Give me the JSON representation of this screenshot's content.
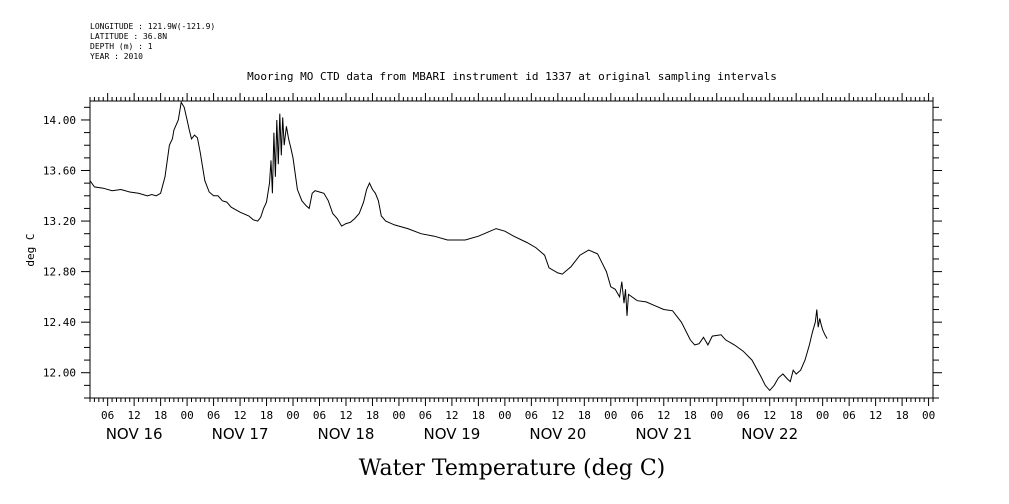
{
  "header": {
    "lines": [
      "LONGITUDE : 121.9W(-121.9)",
      "LATITUDE : 36.8N",
      "DEPTH (m) : 1",
      "YEAR : 2010"
    ]
  },
  "chart_data": {
    "type": "line",
    "title": "Mooring MO CTD data from MBARI instrument id 1337 at original sampling intervals",
    "xlabel": "Water Temperature (deg C)",
    "ylabel": "deg C",
    "xlim": [
      "2010-11-15T02:00",
      "2010-11-23T01:00"
    ],
    "ylim": [
      11.8,
      14.15
    ],
    "yticks": [
      12.0,
      12.4,
      12.8,
      13.2,
      13.6,
      14.0
    ],
    "ytick_labels": [
      "12.00",
      "12.40",
      "12.80",
      "13.20",
      "13.60",
      "14.00"
    ],
    "hour_tick_labels": [
      {
        "t": "2010-11-15T06:00",
        "label": "06"
      },
      {
        "t": "2010-11-15T12:00",
        "label": "12"
      },
      {
        "t": "2010-11-15T18:00",
        "label": "18"
      },
      {
        "t": "2010-11-16T00:00",
        "label": "00"
      },
      {
        "t": "2010-11-16T06:00",
        "label": "06"
      },
      {
        "t": "2010-11-16T12:00",
        "label": "12"
      },
      {
        "t": "2010-11-16T18:00",
        "label": "18"
      },
      {
        "t": "2010-11-17T00:00",
        "label": "00"
      },
      {
        "t": "2010-11-17T06:00",
        "label": "06"
      },
      {
        "t": "2010-11-17T12:00",
        "label": "12"
      },
      {
        "t": "2010-11-17T18:00",
        "label": "18"
      },
      {
        "t": "2010-11-18T00:00",
        "label": "00"
      },
      {
        "t": "2010-11-18T06:00",
        "label": "06"
      },
      {
        "t": "2010-11-18T12:00",
        "label": "12"
      },
      {
        "t": "2010-11-18T18:00",
        "label": "18"
      },
      {
        "t": "2010-11-19T00:00",
        "label": "00"
      },
      {
        "t": "2010-11-19T06:00",
        "label": "06"
      },
      {
        "t": "2010-11-19T12:00",
        "label": "12"
      },
      {
        "t": "2010-11-19T18:00",
        "label": "18"
      },
      {
        "t": "2010-11-20T00:00",
        "label": "00"
      },
      {
        "t": "2010-11-20T06:00",
        "label": "06"
      },
      {
        "t": "2010-11-20T12:00",
        "label": "12"
      },
      {
        "t": "2010-11-20T18:00",
        "label": "18"
      },
      {
        "t": "2010-11-21T00:00",
        "label": "00"
      },
      {
        "t": "2010-11-21T06:00",
        "label": "06"
      },
      {
        "t": "2010-11-21T12:00",
        "label": "12"
      },
      {
        "t": "2010-11-21T18:00",
        "label": "18"
      },
      {
        "t": "2010-11-22T00:00",
        "label": "00"
      },
      {
        "t": "2010-11-22T06:00",
        "label": "06"
      },
      {
        "t": "2010-11-22T12:00",
        "label": "12"
      },
      {
        "t": "2010-11-22T18:00",
        "label": "18"
      },
      {
        "t": "2010-11-23T00:00",
        "label": "00"
      }
    ],
    "day_labels": [
      {
        "t": "2010-11-15T12:00",
        "label": "NOV 16"
      },
      {
        "t": "2010-11-16T12:00",
        "label": "NOV 17"
      },
      {
        "t": "2010-11-17T12:00",
        "label": "NOV 18"
      },
      {
        "t": "2010-11-18T12:00",
        "label": "NOV 19"
      },
      {
        "t": "2010-11-19T12:00",
        "label": "NOV 20"
      },
      {
        "t": "2010-11-20T12:00",
        "label": "NOV 21"
      },
      {
        "t": "2010-11-21T12:00",
        "label": "NOV 22"
      }
    ],
    "grid": false,
    "series": [
      {
        "color": "#000000",
        "points": [
          [
            "2010-11-15T02:00",
            13.52
          ],
          [
            "2010-11-15T03:00",
            13.47
          ],
          [
            "2010-11-15T05:00",
            13.46
          ],
          [
            "2010-11-15T07:00",
            13.44
          ],
          [
            "2010-11-15T09:00",
            13.45
          ],
          [
            "2010-11-15T11:00",
            13.43
          ],
          [
            "2010-11-15T13:00",
            13.42
          ],
          [
            "2010-11-15T15:00",
            13.4
          ],
          [
            "2010-11-15T16:00",
            13.41
          ],
          [
            "2010-11-15T17:00",
            13.4
          ],
          [
            "2010-11-15T18:00",
            13.42
          ],
          [
            "2010-11-15T19:00",
            13.55
          ],
          [
            "2010-11-15T20:00",
            13.8
          ],
          [
            "2010-11-15T20:40",
            13.85
          ],
          [
            "2010-11-15T21:00",
            13.92
          ],
          [
            "2010-11-15T22:00",
            14.0
          ],
          [
            "2010-11-15T22:40",
            14.14
          ],
          [
            "2010-11-15T23:20",
            14.1
          ],
          [
            "2010-11-16T00:00",
            14.0
          ],
          [
            "2010-11-16T00:30",
            13.92
          ],
          [
            "2010-11-16T01:00",
            13.85
          ],
          [
            "2010-11-16T01:40",
            13.88
          ],
          [
            "2010-11-16T02:20",
            13.86
          ],
          [
            "2010-11-16T03:00",
            13.74
          ],
          [
            "2010-11-16T04:00",
            13.52
          ],
          [
            "2010-11-16T05:00",
            13.43
          ],
          [
            "2010-11-16T06:00",
            13.4
          ],
          [
            "2010-11-16T07:00",
            13.4
          ],
          [
            "2010-11-16T08:00",
            13.36
          ],
          [
            "2010-11-16T09:00",
            13.35
          ],
          [
            "2010-11-16T10:00",
            13.31
          ],
          [
            "2010-11-16T12:00",
            13.27
          ],
          [
            "2010-11-16T14:00",
            13.24
          ],
          [
            "2010-11-16T15:00",
            13.21
          ],
          [
            "2010-11-16T16:00",
            13.2
          ],
          [
            "2010-11-16T16:40",
            13.23
          ],
          [
            "2010-11-16T17:20",
            13.3
          ],
          [
            "2010-11-16T18:00",
            13.35
          ],
          [
            "2010-11-16T18:40",
            13.5
          ],
          [
            "2010-11-16T19:00",
            13.68
          ],
          [
            "2010-11-16T19:20",
            13.42
          ],
          [
            "2010-11-16T19:40",
            13.9
          ],
          [
            "2010-11-16T20:00",
            13.55
          ],
          [
            "2010-11-16T20:20",
            14.0
          ],
          [
            "2010-11-16T20:40",
            13.65
          ],
          [
            "2010-11-16T21:00",
            14.05
          ],
          [
            "2010-11-16T21:20",
            13.72
          ],
          [
            "2010-11-16T21:40",
            14.02
          ],
          [
            "2010-11-16T22:00",
            13.8
          ],
          [
            "2010-11-16T22:30",
            13.95
          ],
          [
            "2010-11-16T23:00",
            13.85
          ],
          [
            "2010-11-16T23:30",
            13.78
          ],
          [
            "2010-11-17T00:00",
            13.7
          ],
          [
            "2010-11-17T01:00",
            13.45
          ],
          [
            "2010-11-17T02:00",
            13.36
          ],
          [
            "2010-11-17T03:00",
            13.32
          ],
          [
            "2010-11-17T03:40",
            13.3
          ],
          [
            "2010-11-17T04:20",
            13.42
          ],
          [
            "2010-11-17T05:00",
            13.44
          ],
          [
            "2010-11-17T06:00",
            13.43
          ],
          [
            "2010-11-17T07:00",
            13.42
          ],
          [
            "2010-11-17T08:00",
            13.36
          ],
          [
            "2010-11-17T09:00",
            13.26
          ],
          [
            "2010-11-17T10:00",
            13.22
          ],
          [
            "2010-11-17T11:00",
            13.16
          ],
          [
            "2010-11-17T12:00",
            13.18
          ],
          [
            "2010-11-17T13:00",
            13.19
          ],
          [
            "2010-11-17T14:00",
            13.22
          ],
          [
            "2010-11-17T15:00",
            13.26
          ],
          [
            "2010-11-17T16:00",
            13.35
          ],
          [
            "2010-11-17T16:40",
            13.45
          ],
          [
            "2010-11-17T17:20",
            13.5
          ],
          [
            "2010-11-17T18:00",
            13.45
          ],
          [
            "2010-11-17T18:40",
            13.42
          ],
          [
            "2010-11-17T19:20",
            13.36
          ],
          [
            "2010-11-17T20:00",
            13.24
          ],
          [
            "2010-11-17T21:00",
            13.2
          ],
          [
            "2010-11-17T23:00",
            13.17
          ],
          [
            "2010-11-18T02:00",
            13.14
          ],
          [
            "2010-11-18T05:00",
            13.1
          ],
          [
            "2010-11-18T08:00",
            13.08
          ],
          [
            "2010-11-18T11:00",
            13.05
          ],
          [
            "2010-11-18T15:00",
            13.05
          ],
          [
            "2010-11-18T18:00",
            13.08
          ],
          [
            "2010-11-18T20:00",
            13.11
          ],
          [
            "2010-11-18T22:00",
            13.14
          ],
          [
            "2010-11-19T00:00",
            13.12
          ],
          [
            "2010-11-19T02:00",
            13.08
          ],
          [
            "2010-11-19T05:00",
            13.03
          ],
          [
            "2010-11-19T07:00",
            12.99
          ],
          [
            "2010-11-19T09:00",
            12.93
          ],
          [
            "2010-11-19T10:00",
            12.83
          ],
          [
            "2010-11-19T12:00",
            12.79
          ],
          [
            "2010-11-19T13:00",
            12.78
          ],
          [
            "2010-11-19T15:00",
            12.84
          ],
          [
            "2010-11-19T17:00",
            12.93
          ],
          [
            "2010-11-19T19:00",
            12.97
          ],
          [
            "2010-11-19T21:00",
            12.94
          ],
          [
            "2010-11-19T22:00",
            12.87
          ],
          [
            "2010-11-19T23:00",
            12.8
          ],
          [
            "2010-11-20T00:00",
            12.68
          ],
          [
            "2010-11-20T01:00",
            12.66
          ],
          [
            "2010-11-20T02:00",
            12.6
          ],
          [
            "2010-11-20T02:30",
            12.72
          ],
          [
            "2010-11-20T03:00",
            12.55
          ],
          [
            "2010-11-20T03:20",
            12.66
          ],
          [
            "2010-11-20T03:40",
            12.45
          ],
          [
            "2010-11-20T04:00",
            12.62
          ],
          [
            "2010-11-20T06:00",
            12.57
          ],
          [
            "2010-11-20T08:00",
            12.56
          ],
          [
            "2010-11-20T10:00",
            12.53
          ],
          [
            "2010-11-20T12:00",
            12.5
          ],
          [
            "2010-11-20T14:00",
            12.49
          ],
          [
            "2010-11-20T16:00",
            12.4
          ],
          [
            "2010-11-20T18:00",
            12.26
          ],
          [
            "2010-11-20T19:00",
            12.22
          ],
          [
            "2010-11-20T20:00",
            12.23
          ],
          [
            "2010-11-20T21:00",
            12.28
          ],
          [
            "2010-11-20T22:00",
            12.22
          ],
          [
            "2010-11-20T23:00",
            12.29
          ],
          [
            "2010-11-21T01:00",
            12.3
          ],
          [
            "2010-11-21T02:00",
            12.26
          ],
          [
            "2010-11-21T04:00",
            12.22
          ],
          [
            "2010-11-21T06:00",
            12.17
          ],
          [
            "2010-11-21T08:00",
            12.1
          ],
          [
            "2010-11-21T10:00",
            11.97
          ],
          [
            "2010-11-21T11:00",
            11.9
          ],
          [
            "2010-11-21T12:00",
            11.86
          ],
          [
            "2010-11-21T13:00",
            11.9
          ],
          [
            "2010-11-21T14:00",
            11.96
          ],
          [
            "2010-11-21T15:00",
            11.99
          ],
          [
            "2010-11-21T16:00",
            11.95
          ],
          [
            "2010-11-21T16:40",
            11.93
          ],
          [
            "2010-11-21T17:20",
            12.02
          ],
          [
            "2010-11-21T18:00",
            11.99
          ],
          [
            "2010-11-21T19:00",
            12.02
          ],
          [
            "2010-11-21T20:00",
            12.1
          ],
          [
            "2010-11-21T21:00",
            12.22
          ],
          [
            "2010-11-21T21:40",
            12.32
          ],
          [
            "2010-11-21T22:20",
            12.4
          ],
          [
            "2010-11-21T22:40",
            12.5
          ],
          [
            "2010-11-21T23:00",
            12.36
          ],
          [
            "2010-11-21T23:20",
            12.43
          ],
          [
            "2010-11-21T23:40",
            12.38
          ],
          [
            "2010-11-22T00:00",
            12.34
          ],
          [
            "2010-11-22T00:30",
            12.3
          ],
          [
            "2010-11-22T01:00",
            12.27
          ]
        ]
      }
    ]
  }
}
